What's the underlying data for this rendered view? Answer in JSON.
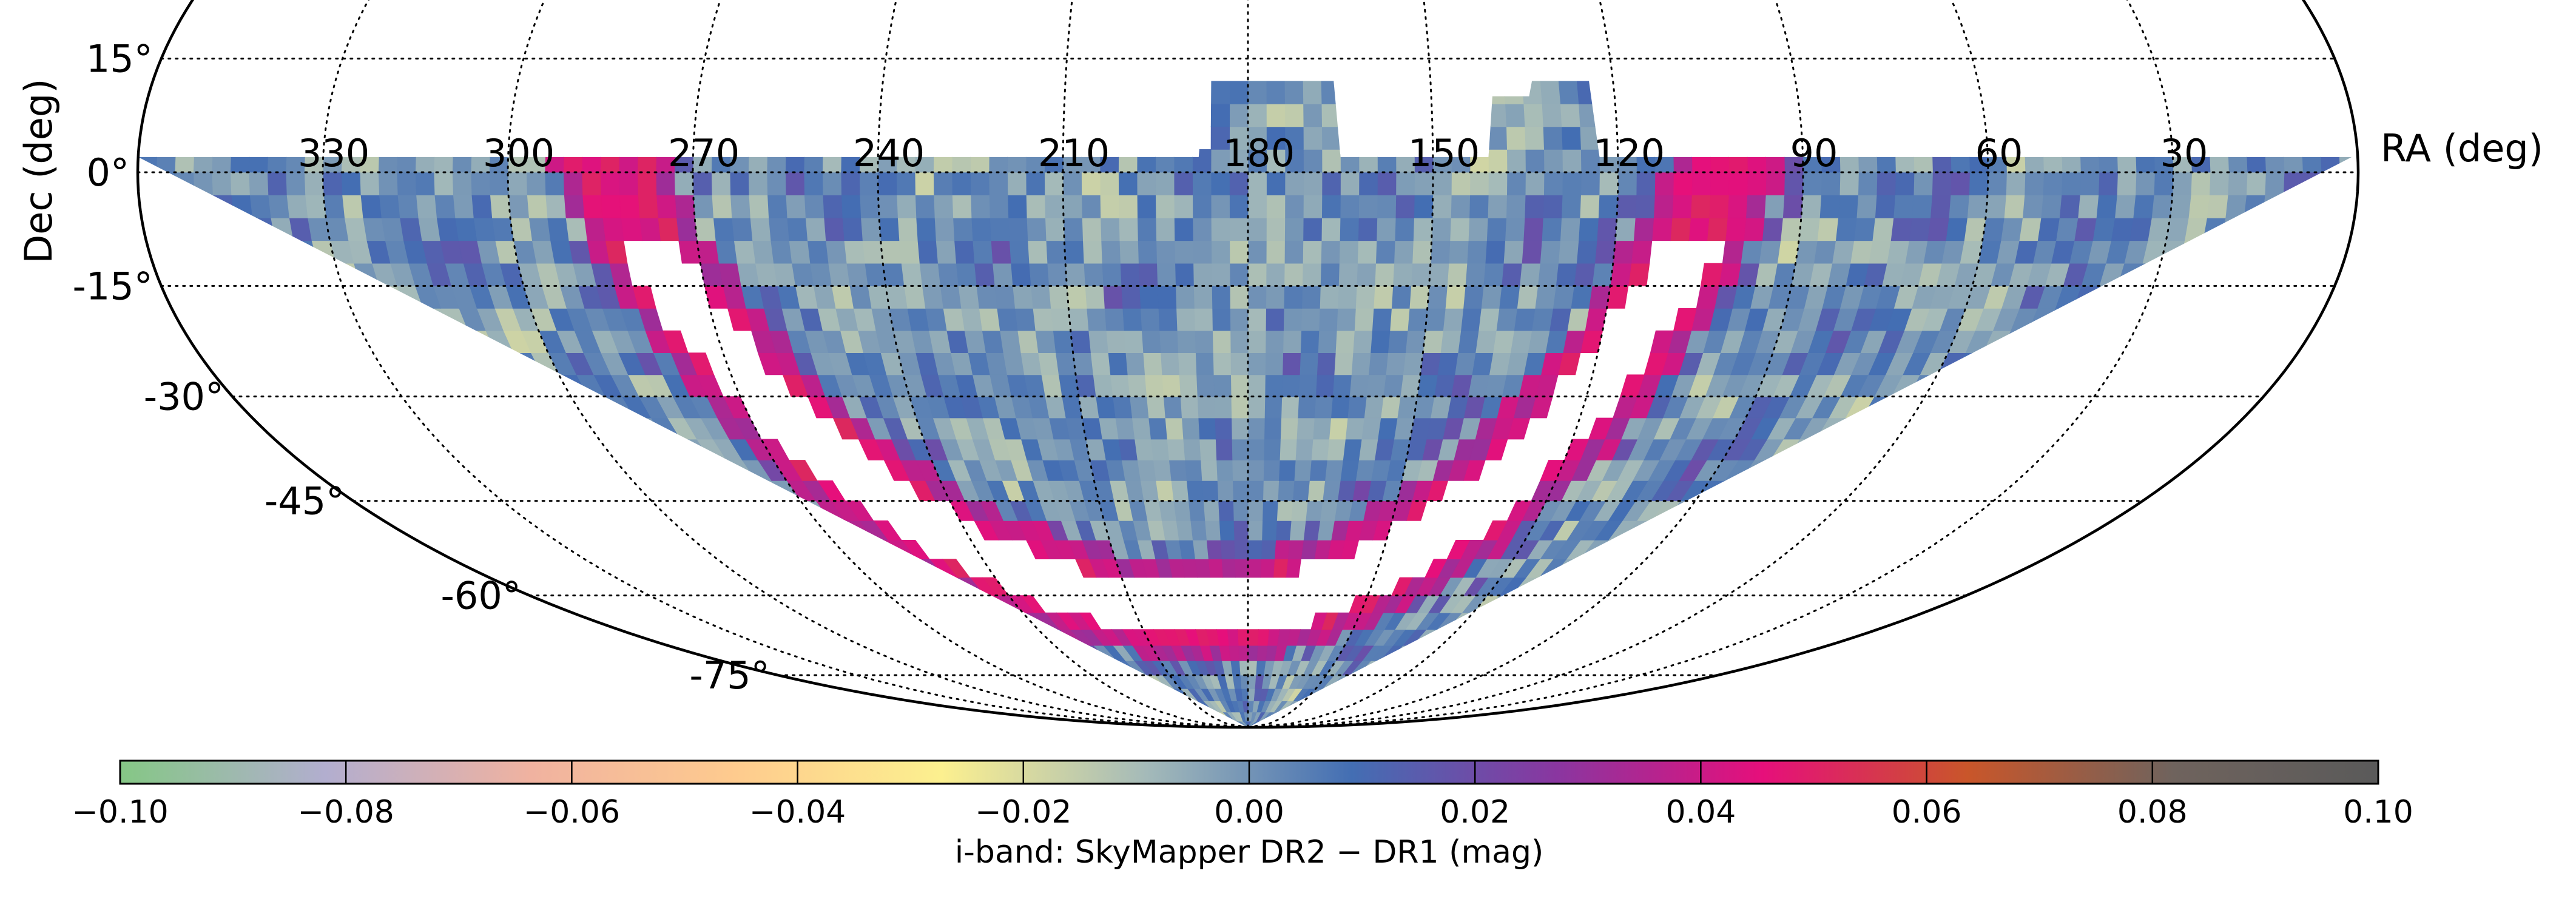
{
  "chart_data": {
    "type": "heatmap",
    "projection": "mollweide",
    "hemisphere_shown": "south of +20 deg declination, top truncated",
    "x_axis": {
      "label": "RA (deg)",
      "direction": "decreasing to the right",
      "ticks": [
        330,
        300,
        270,
        240,
        210,
        180,
        150,
        120,
        90,
        60,
        30
      ],
      "tick_labels": [
        "330",
        "300",
        "270",
        "240",
        "210",
        "180",
        "150",
        "120",
        "90",
        "60",
        "30"
      ]
    },
    "y_axis": {
      "label": "Dec (deg)",
      "ticks": [
        15,
        0,
        -15,
        -30,
        -45,
        -60,
        -75
      ],
      "tick_labels": [
        "15°",
        "0°",
        "-15°",
        "-30°",
        "-45°",
        "-60°",
        "-75°"
      ]
    },
    "grid": true,
    "data_description": {
      "coverage_dec_range": [
        -90,
        2
      ],
      "coverage_extension_dec_max": 13,
      "coverage_extension_ra_ranges": [
        [
          165,
          187
        ],
        [
          123,
          140
        ]
      ],
      "galactic_plane_gap": "white region with no data along the Galactic plane",
      "dominant_value_range": [
        -0.02,
        0.02
      ],
      "high_residual_regions": "magenta / red along the edges of the Galactic plane gap"
    },
    "colorbar": {
      "label": "i-band: SkyMapper DR2 − DR1 (mag)",
      "range": [
        -0.1,
        0.1
      ],
      "ticks": [
        -0.1,
        -0.08,
        -0.06,
        -0.04,
        -0.02,
        0.0,
        0.02,
        0.04,
        0.06,
        0.08,
        0.1
      ],
      "tick_labels": [
        "−0.10",
        "−0.08",
        "−0.06",
        "−0.04",
        "−0.02",
        "0.00",
        "0.02",
        "0.04",
        "0.06",
        "0.08",
        "0.10"
      ],
      "colors": [
        "#85c785",
        "#b2aecf",
        "#f0b2a0",
        "#fecb8e",
        "#fcf08f",
        "#a4bab9",
        "#436eb3",
        "#8a36a0",
        "#e60f7b",
        "#c9562a",
        "#6f635d",
        "#5a5a5a"
      ],
      "orientation": "horizontal",
      "position": "bottom"
    }
  }
}
